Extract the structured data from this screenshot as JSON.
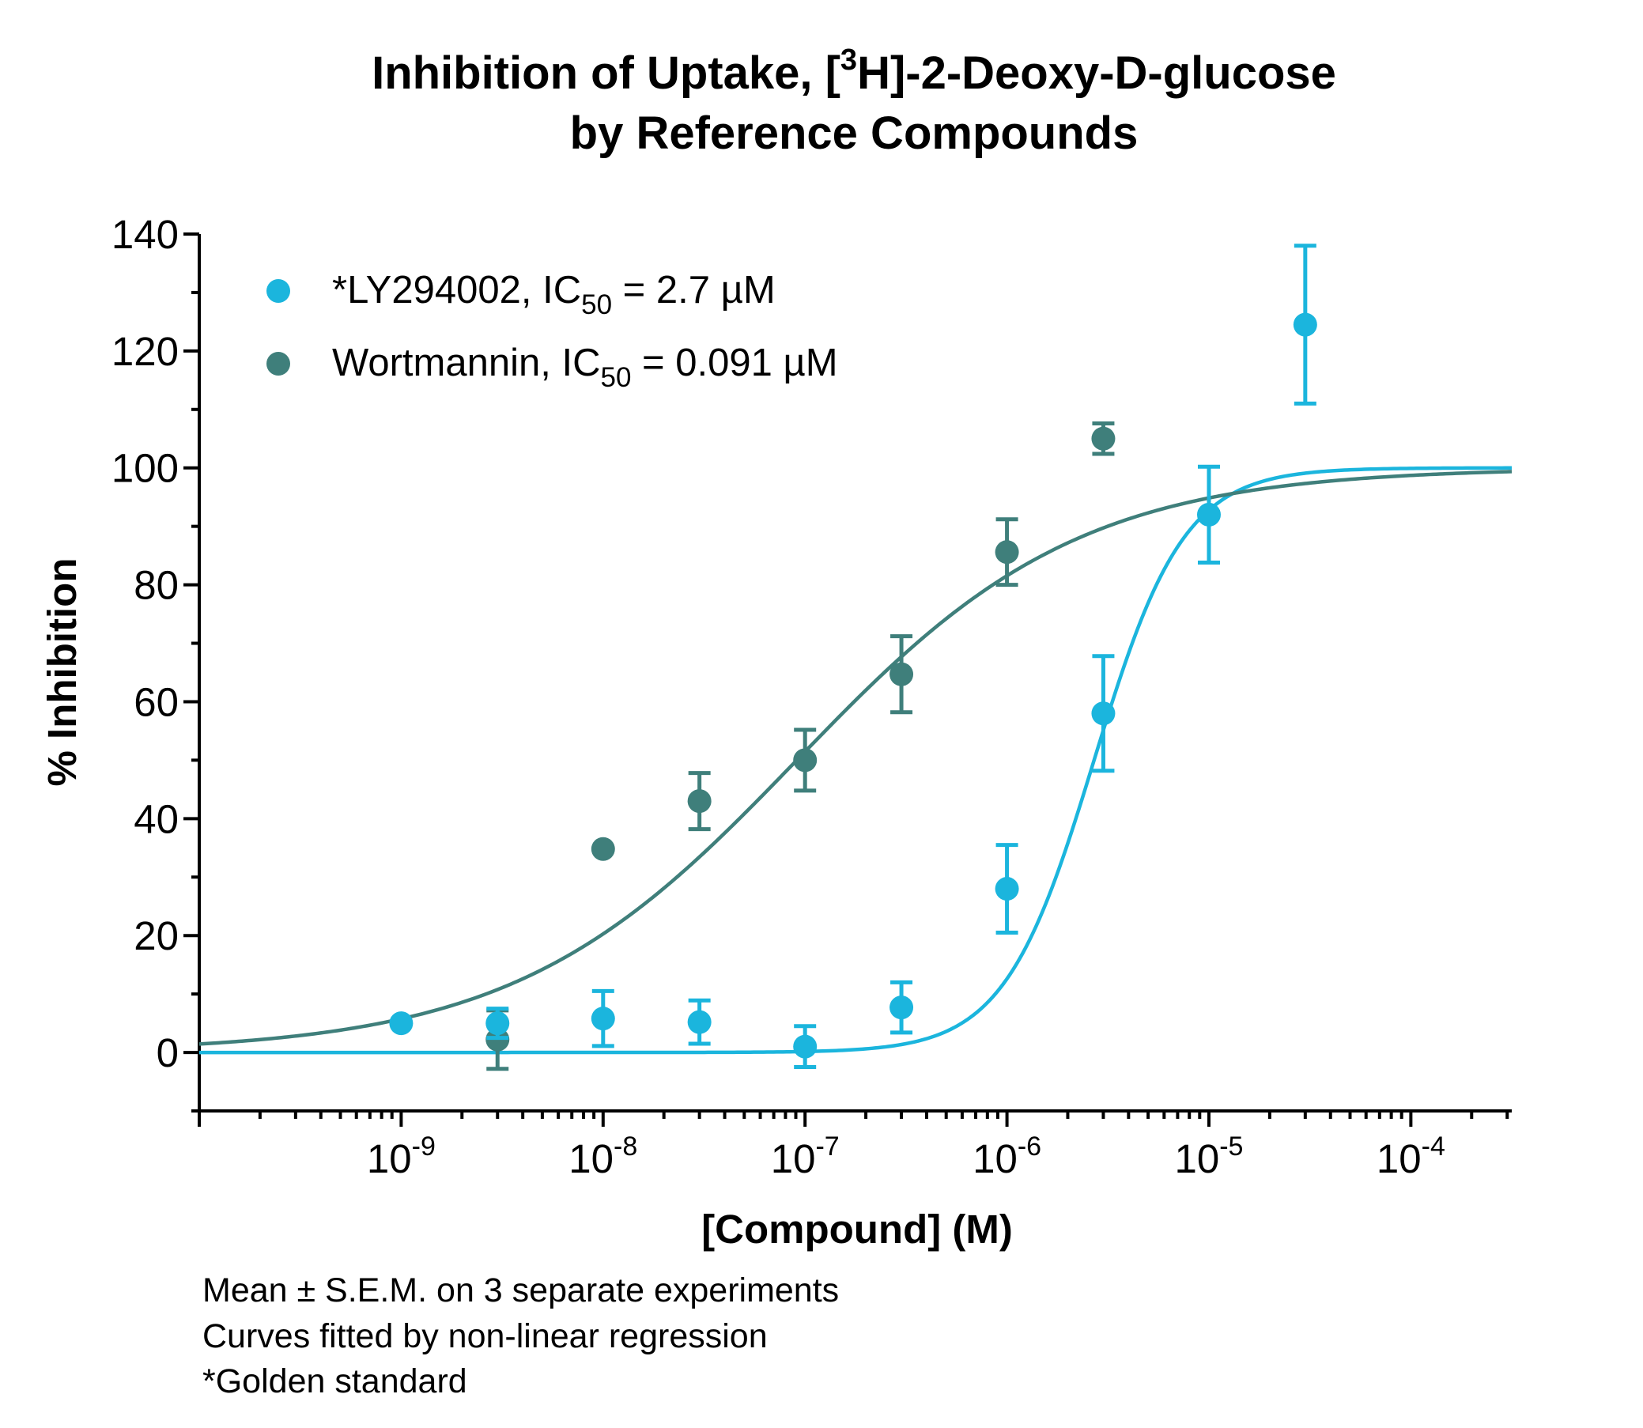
{
  "chart_data": {
    "type": "scatter",
    "title": {
      "line1_pre": "Inhibition of Uptake, [",
      "line1_sup": "3",
      "line1_post": "H]-2-Deoxy-D-glucose",
      "line2": "by Reference Compounds"
    },
    "xlabel": "[Compound] (M)",
    "ylabel": "% Inhibition",
    "x_scale": "log",
    "xlim": [
      1e-10,
      0.000316
    ],
    "ylim": [
      -10,
      140
    ],
    "y_ticks": [
      0,
      20,
      40,
      60,
      80,
      100,
      120,
      140
    ],
    "x_ticks": [
      {
        "value": 1e-09,
        "base": "10",
        "exp": "-9"
      },
      {
        "value": 1e-08,
        "base": "10",
        "exp": "-8"
      },
      {
        "value": 1e-07,
        "base": "10",
        "exp": "-7"
      },
      {
        "value": 1e-06,
        "base": "10",
        "exp": "-6"
      },
      {
        "value": 1e-05,
        "base": "10",
        "exp": "-5"
      },
      {
        "value": 0.0001,
        "base": "10",
        "exp": "-4"
      }
    ],
    "grid": false,
    "legend_position": "top-left",
    "series": [
      {
        "name_pre": "*LY294002, IC",
        "name_sub": "50",
        "name_post": " = 2.7 µM",
        "color": "#1bb5dd",
        "points": [
          {
            "x": 1e-09,
            "y": 5,
            "err": 0
          },
          {
            "x": 3e-09,
            "y": 5,
            "err": 2.5
          },
          {
            "x": 1e-08,
            "y": 5.8,
            "err": 4.7
          },
          {
            "x": 3e-08,
            "y": 5.2,
            "err": 3.7
          },
          {
            "x": 1e-07,
            "y": 1,
            "err": 3.5
          },
          {
            "x": 3e-07,
            "y": 7.7,
            "err": 4.3
          },
          {
            "x": 1e-06,
            "y": 28,
            "err": 7.5
          },
          {
            "x": 3e-06,
            "y": 58,
            "err": 9.8
          },
          {
            "x": 1e-05,
            "y": 92,
            "err": 8.2
          },
          {
            "x": 3e-05,
            "y": 124.5,
            "err": 13.5
          }
        ],
        "fit": {
          "bottom": 0,
          "top": 100,
          "ic50": 2.7e-06,
          "hill": 1.95
        }
      },
      {
        "name_pre": "Wortmannin, IC",
        "name_sub": "50",
        "name_post": " = 0.091 µM",
        "color": "#3f7f7b",
        "points": [
          {
            "x": 3e-09,
            "y": 2.2,
            "err": 5
          },
          {
            "x": 1e-08,
            "y": 34.8,
            "err": 0
          },
          {
            "x": 3e-08,
            "y": 43,
            "err": 4.8
          },
          {
            "x": 1e-07,
            "y": 50,
            "err": 5.2
          },
          {
            "x": 3e-07,
            "y": 64.7,
            "err": 6.5
          },
          {
            "x": 1e-06,
            "y": 85.6,
            "err": 5.6
          },
          {
            "x": 3e-06,
            "y": 105,
            "err": 2.6
          }
        ],
        "fit": {
          "bottom": 0,
          "top": 100,
          "ic50": 9.1e-08,
          "hill": 0.62
        }
      }
    ],
    "footnotes": [
      "Mean ± S.E.M. on 3 separate experiments",
      "Curves fitted by non-linear regression",
      "*Golden standard"
    ]
  }
}
